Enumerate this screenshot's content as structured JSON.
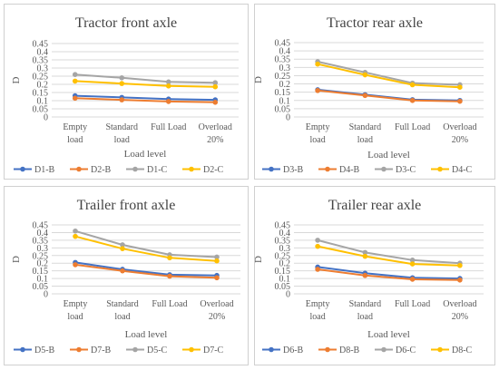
{
  "chart_data": [
    {
      "type": "line",
      "title": "Tractor front axle",
      "xlabel": "Load level",
      "ylabel": "D",
      "ylim": [
        0,
        0.45
      ],
      "yticks": [
        "0",
        "0.05",
        "0.1",
        "0.15",
        "0.2",
        "0.25",
        "0.3",
        "0.35",
        "0.4",
        "0.45"
      ],
      "categories": [
        [
          "Empty",
          "load"
        ],
        [
          "Standard",
          "load"
        ],
        [
          "Full Load"
        ],
        [
          "Overload",
          "20%"
        ]
      ],
      "grid": true,
      "legend": "bottom",
      "series": [
        {
          "name": "D1-B",
          "color": "#4472c4",
          "values": [
            0.13,
            0.12,
            0.11,
            0.105
          ]
        },
        {
          "name": "D2-B",
          "color": "#ed7d31",
          "values": [
            0.115,
            0.105,
            0.095,
            0.09
          ]
        },
        {
          "name": "D1-C",
          "color": "#a5a5a5",
          "values": [
            0.26,
            0.24,
            0.215,
            0.21
          ]
        },
        {
          "name": "D2-C",
          "color": "#ffc000",
          "values": [
            0.22,
            0.205,
            0.19,
            0.185
          ]
        }
      ]
    },
    {
      "type": "line",
      "title": "Tractor rear axle",
      "xlabel": "Load level",
      "ylabel": "D",
      "ylim": [
        0,
        0.45
      ],
      "yticks": [
        "0",
        "0.05",
        "0.1",
        "0.15",
        "0.2",
        "0.25",
        "0.3",
        "0.35",
        "0.4",
        "0.45"
      ],
      "categories": [
        [
          "Empty",
          "load"
        ],
        [
          "Standard",
          "load"
        ],
        [
          "Full Load"
        ],
        [
          "Overload",
          "20%"
        ]
      ],
      "grid": true,
      "legend": "bottom",
      "series": [
        {
          "name": "D3-B",
          "color": "#4472c4",
          "values": [
            0.165,
            0.135,
            0.105,
            0.1
          ]
        },
        {
          "name": "D4-B",
          "color": "#ed7d31",
          "values": [
            0.16,
            0.13,
            0.1,
            0.095
          ]
        },
        {
          "name": "D3-C",
          "color": "#a5a5a5",
          "values": [
            0.335,
            0.27,
            0.205,
            0.195
          ]
        },
        {
          "name": "D4-C",
          "color": "#ffc000",
          "values": [
            0.32,
            0.255,
            0.195,
            0.18
          ]
        }
      ]
    },
    {
      "type": "line",
      "title": "Trailer front axle",
      "xlabel": "Load level",
      "ylabel": "D",
      "ylim": [
        0,
        0.45
      ],
      "yticks": [
        "0",
        "0.05",
        "0.1",
        "0.15",
        "0.2",
        "0.25",
        "0.3",
        "0.35",
        "0.4",
        "0.45"
      ],
      "categories": [
        [
          "Empty",
          "load"
        ],
        [
          "Standard",
          "load"
        ],
        [
          "Full Load"
        ],
        [
          "Overload",
          "20%"
        ]
      ],
      "grid": true,
      "legend": "bottom",
      "series": [
        {
          "name": "D5-B",
          "color": "#4472c4",
          "values": [
            0.205,
            0.16,
            0.125,
            0.12
          ]
        },
        {
          "name": "D7-B",
          "color": "#ed7d31",
          "values": [
            0.19,
            0.15,
            0.115,
            0.105
          ]
        },
        {
          "name": "D5-C",
          "color": "#a5a5a5",
          "values": [
            0.41,
            0.32,
            0.255,
            0.24
          ]
        },
        {
          "name": "D7-C",
          "color": "#ffc000",
          "values": [
            0.375,
            0.295,
            0.235,
            0.215
          ]
        }
      ]
    },
    {
      "type": "line",
      "title": "Trailer rear axle",
      "xlabel": "Load level",
      "ylabel": "D",
      "ylim": [
        0,
        0.45
      ],
      "yticks": [
        "0",
        "0.05",
        "0.1",
        "0.15",
        "0.2",
        "0.25",
        "0.3",
        "0.35",
        "0.4",
        "0.45"
      ],
      "categories": [
        [
          "Empty",
          "load"
        ],
        [
          "Standard",
          "load"
        ],
        [
          "Full Load"
        ],
        [
          "Overload",
          "20%"
        ]
      ],
      "grid": true,
      "legend": "bottom",
      "series": [
        {
          "name": "D6-B",
          "color": "#4472c4",
          "values": [
            0.175,
            0.135,
            0.105,
            0.1
          ]
        },
        {
          "name": "D8-B",
          "color": "#ed7d31",
          "values": [
            0.16,
            0.12,
            0.095,
            0.09
          ]
        },
        {
          "name": "D6-C",
          "color": "#a5a5a5",
          "values": [
            0.35,
            0.27,
            0.22,
            0.2
          ]
        },
        {
          "name": "D8-C",
          "color": "#ffc000",
          "values": [
            0.31,
            0.245,
            0.195,
            0.185
          ]
        }
      ]
    }
  ]
}
